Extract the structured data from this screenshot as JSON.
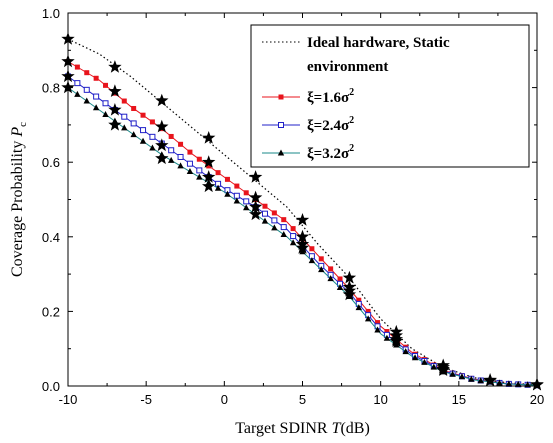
{
  "chart_data": {
    "type": "line",
    "xlabel_main": "Target SDINR ",
    "xlabel_var": "T",
    "xlabel_unit": "(dB)",
    "ylabel_main": "Coverage Probability ",
    "ylabel_var": "P",
    "ylabel_sub": "c",
    "xlim": [
      -10,
      20
    ],
    "ylim": [
      0.0,
      1.0
    ],
    "xticks": [
      -10,
      -5,
      0,
      5,
      10,
      15,
      20
    ],
    "yticks": [
      0.0,
      0.2,
      0.4,
      0.6,
      0.8,
      1.0
    ],
    "xtick_labels": [
      "-10",
      "-5",
      "0",
      "5",
      "10",
      "15",
      "20"
    ],
    "ytick_labels": [
      "0.0",
      "0.2",
      "0.4",
      "0.6",
      "0.8",
      "1.0"
    ],
    "grid": false,
    "legend_position": "top-right",
    "series": [
      {
        "name": "Ideal hardware,  Static environment",
        "legend_lines": [
          "Ideal hardware,  Static",
          "environment"
        ],
        "style": "dotted",
        "color": "#000000",
        "marker": "none",
        "x": [
          -10,
          -8,
          -6,
          -4,
          -2,
          0,
          2,
          4,
          6,
          8,
          10,
          12,
          14,
          16,
          18,
          20
        ],
        "y": [
          0.93,
          0.89,
          0.83,
          0.76,
          0.69,
          0.62,
          0.55,
          0.48,
          0.38,
          0.29,
          0.18,
          0.1,
          0.05,
          0.022,
          0.009,
          0.003
        ]
      },
      {
        "name": "ξ=1.6σ²",
        "legend_label": "ξ=1.6σ",
        "legend_sup": "2",
        "style": "solid",
        "color": "#e8141c",
        "marker": "square-filled",
        "x": [
          -10,
          -8,
          -6,
          -4,
          -2,
          0,
          2,
          4,
          6,
          8,
          10,
          12,
          14,
          16,
          18,
          20
        ],
        "y": [
          0.87,
          0.82,
          0.75,
          0.69,
          0.62,
          0.56,
          0.5,
          0.44,
          0.35,
          0.26,
          0.16,
          0.09,
          0.042,
          0.018,
          0.007,
          0.002
        ]
      },
      {
        "name": "ξ=2.4σ²",
        "legend_label": "ξ=2.4σ",
        "legend_sup": "2",
        "style": "solid",
        "color": "#2020c8",
        "marker": "square-open",
        "x": [
          -10,
          -8,
          -6,
          -4,
          -2,
          0,
          2,
          4,
          6,
          8,
          10,
          12,
          14,
          16,
          18,
          20
        ],
        "y": [
          0.83,
          0.77,
          0.71,
          0.65,
          0.59,
          0.53,
          0.48,
          0.42,
          0.33,
          0.25,
          0.15,
          0.085,
          0.04,
          0.017,
          0.006,
          0.002
        ]
      },
      {
        "name": "ξ=3.2σ²",
        "legend_label": "ξ=3.2σ",
        "legend_sup": "2",
        "style": "solid",
        "color": "#1a8a8a",
        "marker": "triangle-filled",
        "x": [
          -10,
          -8,
          -6,
          -4,
          -2,
          0,
          2,
          4,
          6,
          8,
          10,
          12,
          14,
          16,
          18,
          20
        ],
        "y": [
          0.8,
          0.74,
          0.68,
          0.62,
          0.57,
          0.52,
          0.46,
          0.4,
          0.32,
          0.24,
          0.14,
          0.08,
          0.038,
          0.016,
          0.006,
          0.002
        ]
      }
    ],
    "simulation_markers": {
      "marker": "star",
      "color": "#000000",
      "points": [
        {
          "x": -10,
          "y": 0.93
        },
        {
          "x": -10,
          "y": 0.87
        },
        {
          "x": -10,
          "y": 0.83
        },
        {
          "x": -10,
          "y": 0.8
        },
        {
          "x": -7,
          "y": 0.855
        },
        {
          "x": -7,
          "y": 0.79
        },
        {
          "x": -7,
          "y": 0.74
        },
        {
          "x": -7,
          "y": 0.7
        },
        {
          "x": -4,
          "y": 0.765
        },
        {
          "x": -4,
          "y": 0.695
        },
        {
          "x": -4,
          "y": 0.645
        },
        {
          "x": -4,
          "y": 0.61
        },
        {
          "x": -1,
          "y": 0.665
        },
        {
          "x": -1,
          "y": 0.6
        },
        {
          "x": -1,
          "y": 0.56
        },
        {
          "x": -1,
          "y": 0.535
        },
        {
          "x": 2,
          "y": 0.56
        },
        {
          "x": 2,
          "y": 0.505
        },
        {
          "x": 2,
          "y": 0.48
        },
        {
          "x": 2,
          "y": 0.46
        },
        {
          "x": 5,
          "y": 0.445
        },
        {
          "x": 5,
          "y": 0.4
        },
        {
          "x": 5,
          "y": 0.38
        },
        {
          "x": 5,
          "y": 0.37
        },
        {
          "x": 8,
          "y": 0.29
        },
        {
          "x": 8,
          "y": 0.265
        },
        {
          "x": 8,
          "y": 0.255
        },
        {
          "x": 8,
          "y": 0.245
        },
        {
          "x": 11,
          "y": 0.145
        },
        {
          "x": 11,
          "y": 0.135
        },
        {
          "x": 11,
          "y": 0.125
        },
        {
          "x": 11,
          "y": 0.12
        },
        {
          "x": 14,
          "y": 0.055
        },
        {
          "x": 14,
          "y": 0.05
        },
        {
          "x": 14,
          "y": 0.045
        },
        {
          "x": 14,
          "y": 0.042
        },
        {
          "x": 17,
          "y": 0.016
        },
        {
          "x": 17,
          "y": 0.014
        },
        {
          "x": 20,
          "y": 0.004
        },
        {
          "x": 20,
          "y": 0.003
        }
      ]
    }
  }
}
